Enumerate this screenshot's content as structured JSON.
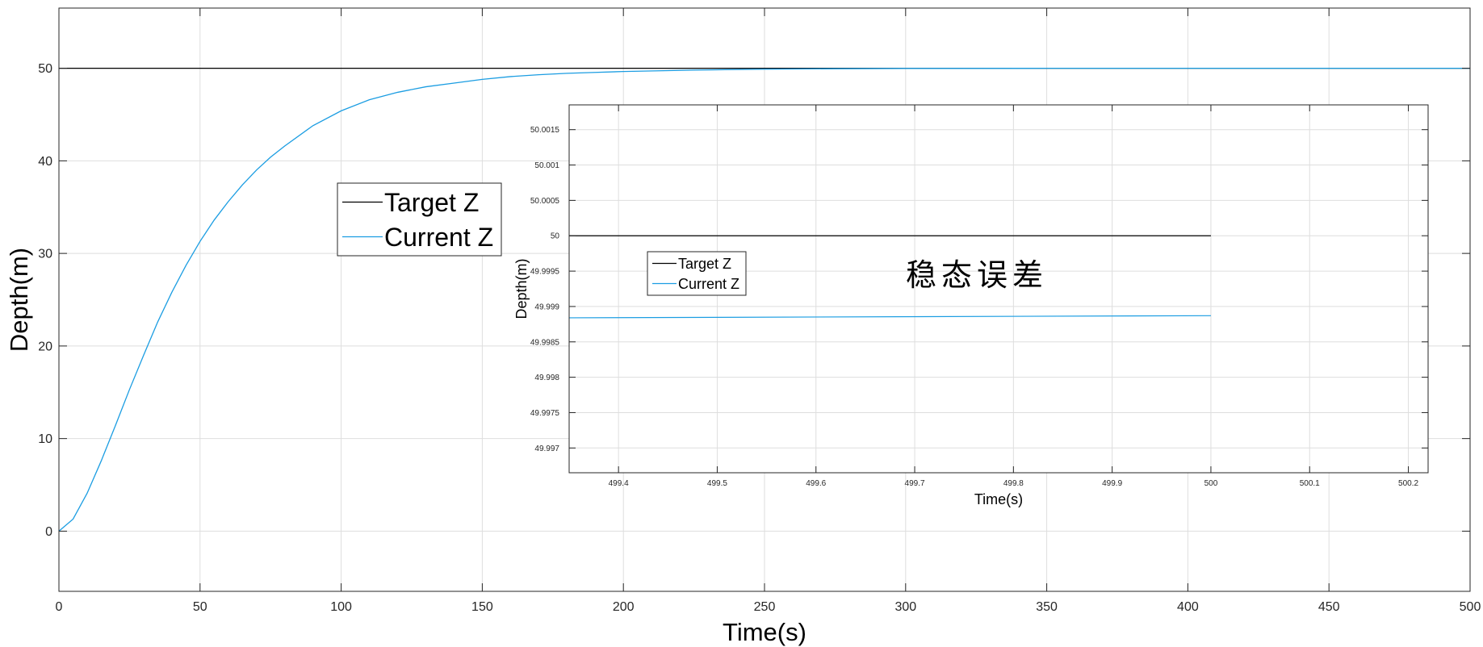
{
  "chart_data": [
    {
      "type": "line",
      "title": "",
      "xlabel": "Time(s)",
      "ylabel": "Depth(m)",
      "xlim": [
        0,
        500
      ],
      "ylim": [
        -6.5,
        56.5
      ],
      "xticks": [
        0,
        50,
        100,
        150,
        200,
        250,
        300,
        350,
        400,
        450,
        500
      ],
      "yticks": [
        0,
        10,
        20,
        30,
        40,
        50
      ],
      "grid": true,
      "legend_position": "left-middle",
      "series": [
        {
          "name": "Target Z",
          "color": "#000000",
          "x": [
            0,
            500
          ],
          "y": [
            50,
            50
          ]
        },
        {
          "name": "Current Z",
          "color": "#1b9de2",
          "x": [
            0,
            5,
            10,
            15,
            20,
            25,
            30,
            35,
            40,
            45,
            50,
            55,
            60,
            65,
            70,
            75,
            80,
            90,
            100,
            110,
            120,
            130,
            140,
            150,
            160,
            170,
            180,
            190,
            200,
            225,
            250,
            275,
            300,
            350,
            400,
            450,
            500
          ],
          "y": [
            0,
            1.3,
            4.1,
            7.6,
            11.4,
            15.3,
            19.0,
            22.6,
            25.8,
            28.7,
            31.3,
            33.6,
            35.6,
            37.4,
            39.0,
            40.4,
            41.6,
            43.8,
            45.4,
            46.6,
            47.4,
            48.0,
            48.4,
            48.8,
            49.1,
            49.3,
            49.45,
            49.55,
            49.65,
            49.8,
            49.9,
            49.95,
            49.98,
            49.995,
            49.999,
            50.0,
            50.0
          ]
        }
      ]
    },
    {
      "type": "line",
      "title": "",
      "xlabel": "Time(s)",
      "ylabel": "Depth(m)",
      "xlim": [
        499.35,
        500.22
      ],
      "ylim": [
        49.99665,
        50.00185
      ],
      "xticks": [
        499.4,
        499.5,
        499.6,
        499.7,
        499.8,
        499.9,
        500,
        500.1,
        500.2
      ],
      "yticks": [
        49.997,
        49.9975,
        49.998,
        49.9985,
        49.999,
        49.9995,
        50,
        50.0005,
        50.001,
        50.0015
      ],
      "grid": true,
      "legend_position": "left-middle",
      "annotation": "稳态误差",
      "series": [
        {
          "name": "Target Z",
          "color": "#000000",
          "x": [
            499.35,
            500
          ],
          "y": [
            50,
            50
          ]
        },
        {
          "name": "Current Z",
          "color": "#1b9de2",
          "x": [
            499.35,
            500
          ],
          "y": [
            49.99884,
            49.99887
          ]
        }
      ]
    }
  ]
}
